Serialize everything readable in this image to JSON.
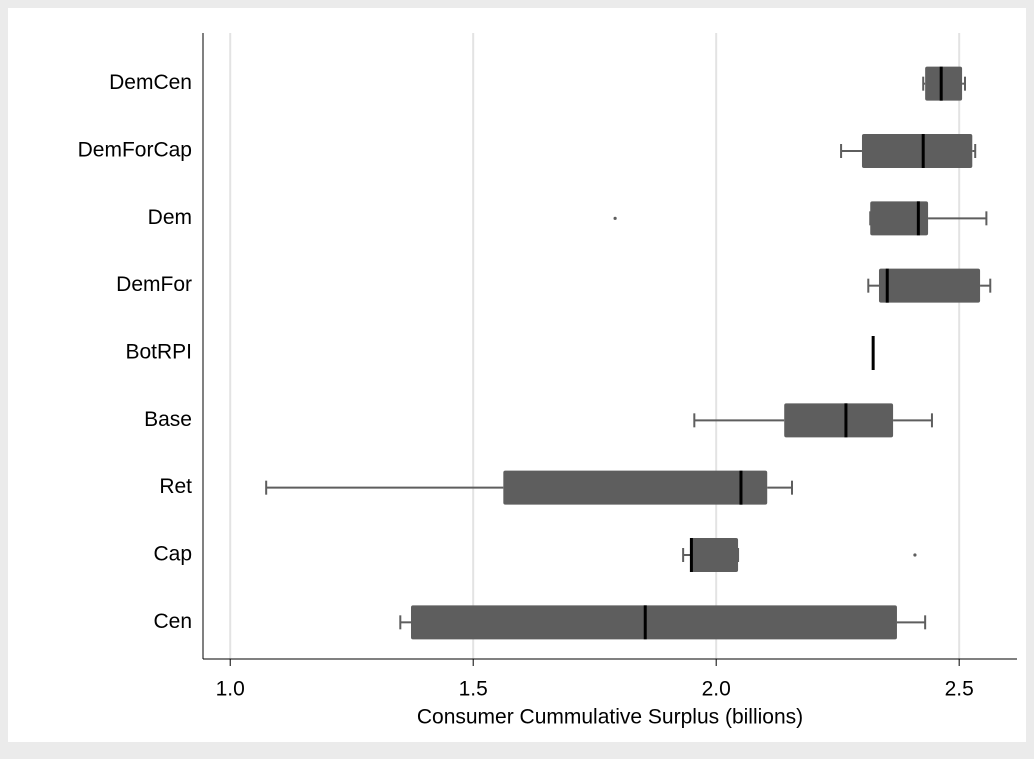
{
  "chart_data": {
    "type": "boxplot",
    "x_label": "Consumer Cummulative Surplus (billions)",
    "categories": [
      "DemCen",
      "DemForCap",
      "Dem",
      "DemFor",
      "BotRPI",
      "Base",
      "Ret",
      "Cap",
      "Cen"
    ],
    "min": [
      2.426,
      2.257,
      2.317,
      2.313,
      2.323,
      1.955,
      1.074,
      1.932,
      1.35
    ],
    "q1": [
      2.43,
      2.3,
      2.317,
      2.335,
      2.323,
      2.14,
      1.562,
      1.949,
      1.372
    ],
    "median": [
      2.463,
      2.426,
      2.416,
      2.352,
      2.323,
      2.267,
      2.051,
      1.949,
      1.854
    ],
    "q3": [
      2.506,
      2.527,
      2.436,
      2.543,
      2.323,
      2.364,
      2.105,
      2.045,
      2.372
    ],
    "max": [
      2.512,
      2.533,
      2.556,
      2.564,
      2.323,
      2.444,
      2.156,
      2.045,
      2.43
    ],
    "outliers": [
      [],
      [],
      [
        1.792
      ],
      [],
      [],
      [],
      [],
      [
        2.409
      ],
      []
    ],
    "color": "#5e5e5e",
    "median_color": "#000000",
    "grid": true,
    "xlim": [
      0.944,
      2.619
    ],
    "xticks": [
      {
        "value": 1.0,
        "label": "1.0"
      },
      {
        "value": 1.5,
        "label": "1.5"
      },
      {
        "value": 2.0,
        "label": "2.0"
      },
      {
        "value": 2.5,
        "label": "2.5"
      }
    ]
  }
}
